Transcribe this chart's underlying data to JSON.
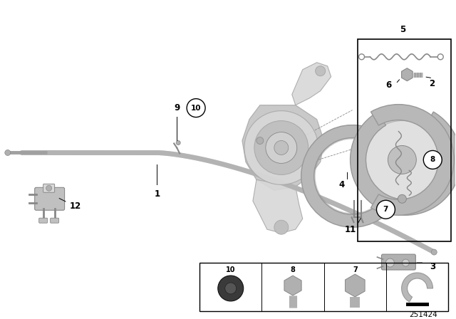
{
  "bg_color": "#ffffff",
  "part_number": "251424",
  "fig_width": 6.4,
  "fig_height": 4.48,
  "dpi": 100,
  "cable_color": "#c0c0c0",
  "cable_dark": "#a0a0a0",
  "knuckle_light": "#d8d8d8",
  "knuckle_mid": "#c0c0c0",
  "knuckle_dark": "#a8a8a8",
  "shoe_color": "#b8b8b8",
  "shoe_dark": "#989898",
  "metal_light": "#d0d0d0",
  "metal_mid": "#b0b0b0",
  "metal_dark": "#888888",
  "outline_color": "#555555",
  "box_color": "#222222",
  "label_color": "#111111"
}
